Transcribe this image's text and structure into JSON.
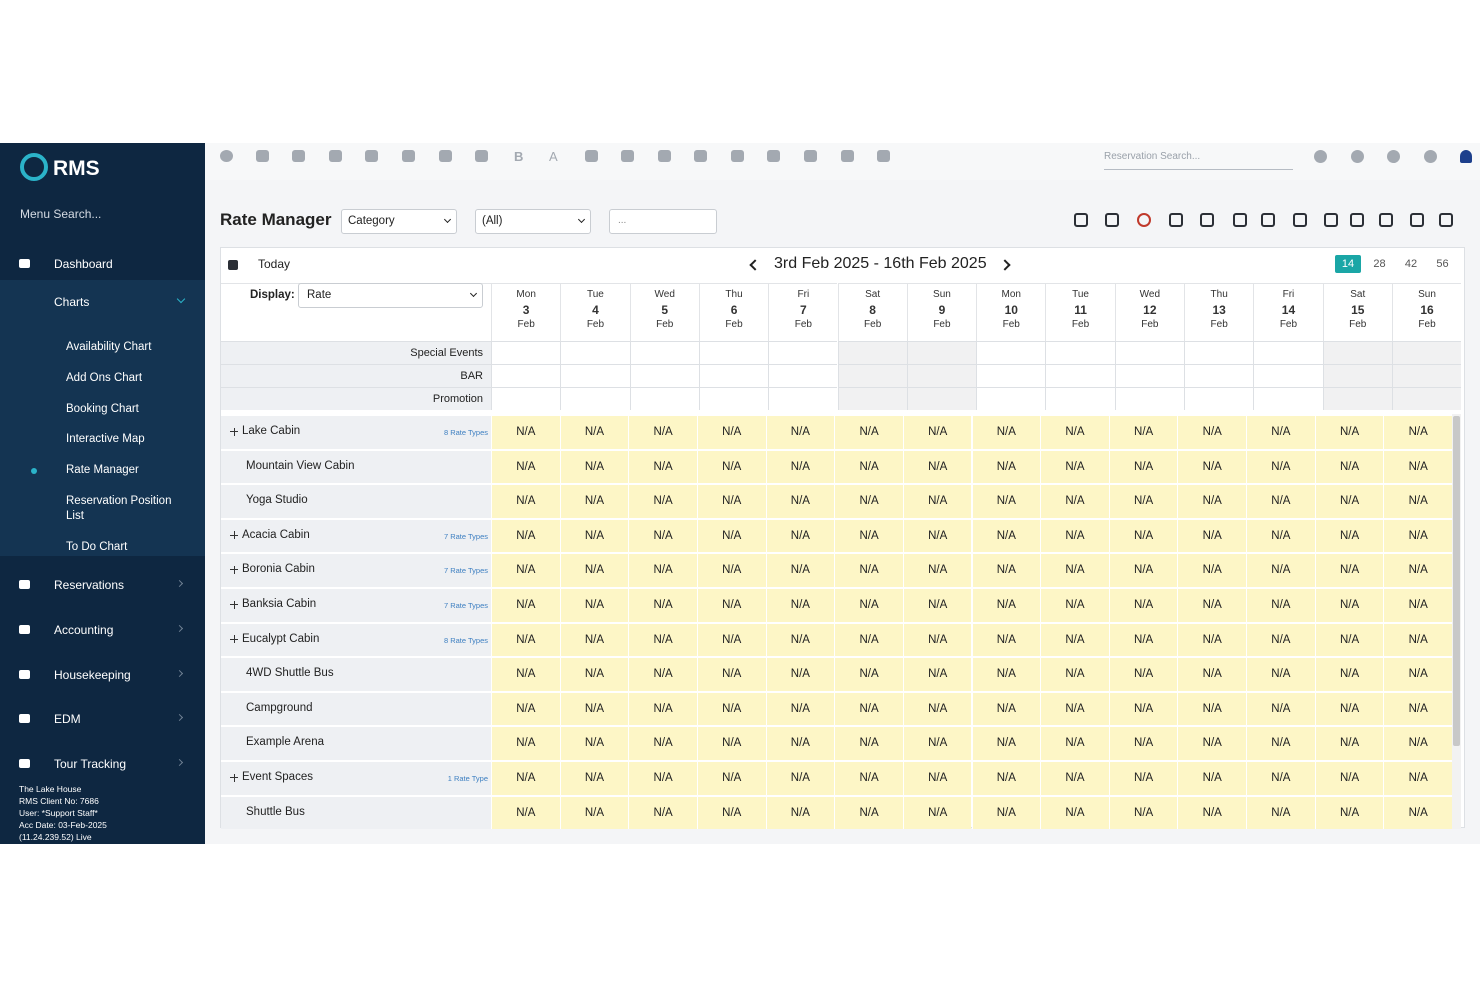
{
  "sidebar": {
    "logo": "RMS",
    "menu_search": "Menu Search...",
    "menu": [
      {
        "label": "Dashboard"
      },
      {
        "label": "Charts",
        "children": [
          "Availability Chart",
          "Add Ons Chart",
          "Booking Chart",
          "Interactive Map",
          "Rate Manager",
          "Reservation Position List",
          "To Do Chart"
        ]
      },
      {
        "label": "Reservations"
      },
      {
        "label": "Accounting"
      },
      {
        "label": "Housekeeping"
      },
      {
        "label": "EDM"
      },
      {
        "label": "Tour Tracking"
      }
    ],
    "footer": [
      "The Lake House",
      "RMS Client No: 7686",
      "User: *Support Staff*",
      "Acc Date: 03-Feb-2025",
      "(11.24.239.52)  Live"
    ]
  },
  "toolbar": {
    "bold_icon": "B",
    "text_icon": "A",
    "reservation_search": "Reservation Search..."
  },
  "header": {
    "title": "Rate Manager",
    "category": "Category",
    "filter": "(All)",
    "search": "..."
  },
  "grid": {
    "today": "Today",
    "date_range": "3rd Feb 2025 - 16th Feb 2025",
    "periods": [
      14,
      28,
      42,
      56
    ],
    "display_label": "Display:",
    "display_value": "Rate",
    "days": [
      {
        "dow": "Mon",
        "day": 3,
        "month": "Feb"
      },
      {
        "dow": "Tue",
        "day": 4,
        "month": "Feb"
      },
      {
        "dow": "Wed",
        "day": 5,
        "month": "Feb"
      },
      {
        "dow": "Thu",
        "day": 6,
        "month": "Feb"
      },
      {
        "dow": "Fri",
        "day": 7,
        "month": "Feb"
      },
      {
        "dow": "Sat",
        "day": 8,
        "month": "Feb"
      },
      {
        "dow": "Sun",
        "day": 9,
        "month": "Feb"
      },
      {
        "dow": "Mon",
        "day": 10,
        "month": "Feb"
      },
      {
        "dow": "Tue",
        "day": 11,
        "month": "Feb"
      },
      {
        "dow": "Wed",
        "day": 12,
        "month": "Feb"
      },
      {
        "dow": "Thu",
        "day": 13,
        "month": "Feb"
      },
      {
        "dow": "Fri",
        "day": 14,
        "month": "Feb"
      },
      {
        "dow": "Sat",
        "day": 15,
        "month": "Feb"
      },
      {
        "dow": "Sun",
        "day": 16,
        "month": "Feb"
      }
    ],
    "special_rows": [
      "Special Events",
      "BAR",
      "Promotion"
    ],
    "rooms": [
      {
        "name": "Lake Cabin",
        "rate_types": "8 Rate Types",
        "cells": [
          "N/A",
          "N/A",
          "N/A",
          "N/A",
          "N/A",
          "N/A",
          "N/A",
          "N/A",
          "N/A",
          "N/A",
          "N/A",
          "N/A",
          "N/A",
          "N/A"
        ]
      },
      {
        "name": "Mountain View Cabin",
        "cells": [
          "N/A",
          "N/A",
          "N/A",
          "N/A",
          "N/A",
          "N/A",
          "N/A",
          "N/A",
          "N/A",
          "N/A",
          "N/A",
          "N/A",
          "N/A",
          "N/A"
        ]
      },
      {
        "name": "Yoga Studio",
        "cells": [
          "N/A",
          "N/A",
          "N/A",
          "N/A",
          "N/A",
          "N/A",
          "N/A",
          "N/A",
          "N/A",
          "N/A",
          "N/A",
          "N/A",
          "N/A",
          "N/A"
        ]
      },
      {
        "name": "Acacia Cabin",
        "rate_types": "7 Rate Types",
        "cells": [
          "N/A",
          "N/A",
          "N/A",
          "N/A",
          "N/A",
          "N/A",
          "N/A",
          "N/A",
          "N/A",
          "N/A",
          "N/A",
          "N/A",
          "N/A",
          "N/A"
        ]
      },
      {
        "name": "Boronia Cabin",
        "rate_types": "7 Rate Types",
        "cells": [
          "N/A",
          "N/A",
          "N/A",
          "N/A",
          "N/A",
          "N/A",
          "N/A",
          "N/A",
          "N/A",
          "N/A",
          "N/A",
          "N/A",
          "N/A",
          "N/A"
        ]
      },
      {
        "name": "Banksia Cabin",
        "rate_types": "7 Rate Types",
        "cells": [
          "N/A",
          "N/A",
          "N/A",
          "N/A",
          "N/A",
          "N/A",
          "N/A",
          "N/A",
          "N/A",
          "N/A",
          "N/A",
          "N/A",
          "N/A",
          "N/A"
        ]
      },
      {
        "name": "Eucalypt Cabin",
        "rate_types": "8 Rate Types",
        "cells": [
          "N/A",
          "N/A",
          "N/A",
          "N/A",
          "N/A",
          "N/A",
          "N/A",
          "N/A",
          "N/A",
          "N/A",
          "N/A",
          "N/A",
          "N/A",
          "N/A"
        ]
      },
      {
        "name": "4WD Shuttle Bus",
        "cells": [
          "N/A",
          "N/A",
          "N/A",
          "N/A",
          "N/A",
          "N/A",
          "N/A",
          "N/A",
          "N/A",
          "N/A",
          "N/A",
          "N/A",
          "N/A",
          "N/A"
        ]
      },
      {
        "name": "Campground",
        "cells": [
          "N/A",
          "N/A",
          "N/A",
          "N/A",
          "N/A",
          "N/A",
          "N/A",
          "N/A",
          "N/A",
          "N/A",
          "N/A",
          "N/A",
          "N/A",
          "N/A"
        ]
      },
      {
        "name": "Example Arena",
        "cells": [
          "N/A",
          "N/A",
          "N/A",
          "N/A",
          "N/A",
          "N/A",
          "N/A",
          "N/A",
          "N/A",
          "N/A",
          "N/A",
          "N/A",
          "N/A",
          "N/A"
        ]
      },
      {
        "name": "Event Spaces",
        "rate_types": "1 Rate Type",
        "cells": [
          "N/A",
          "N/A",
          "N/A",
          "N/A",
          "N/A",
          "N/A",
          "N/A",
          "N/A",
          "N/A",
          "N/A",
          "N/A",
          "N/A",
          "N/A",
          "N/A"
        ]
      },
      {
        "name": "Shuttle Bus",
        "cells": [
          "N/A",
          "N/A",
          "N/A",
          "N/A",
          "N/A",
          "N/A",
          "N/A",
          "N/A",
          "N/A",
          "N/A",
          "N/A",
          "N/A",
          "N/A",
          "N/A"
        ]
      }
    ]
  }
}
